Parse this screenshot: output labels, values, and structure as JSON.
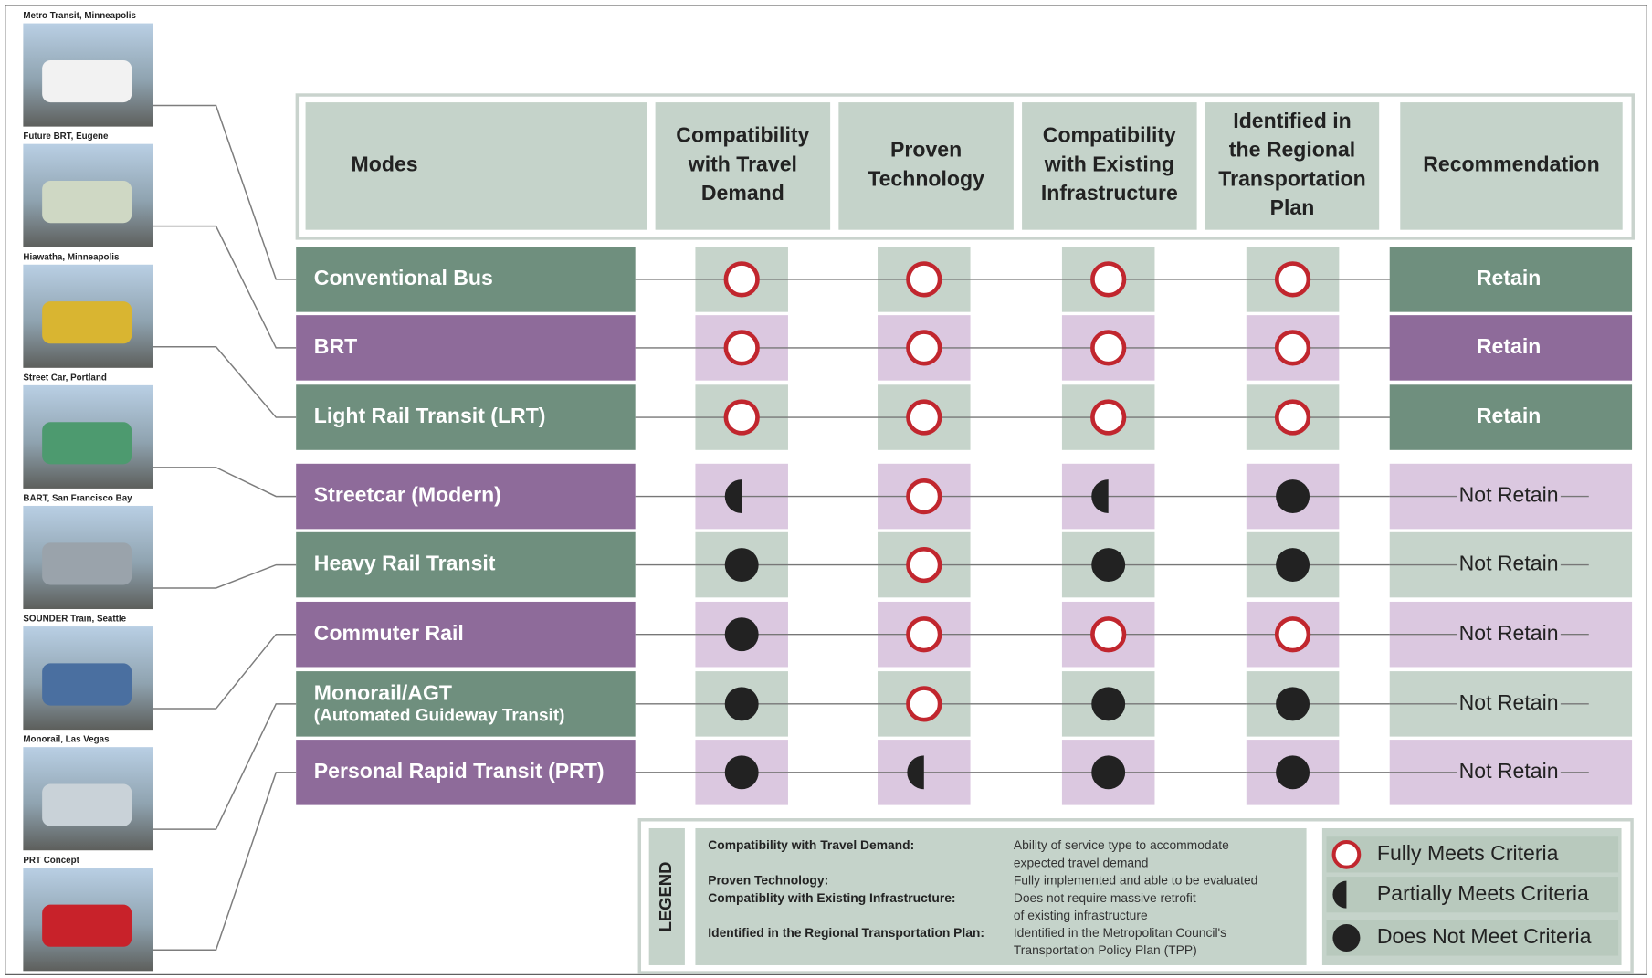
{
  "photos": [
    {
      "caption": "Metro Transit, Minneapolis"
    },
    {
      "caption": "Future BRT, Eugene"
    },
    {
      "caption": "Hiawatha, Minneapolis"
    },
    {
      "caption": "Street Car, Portland"
    },
    {
      "caption": "BART, San Francisco Bay"
    },
    {
      "caption": "SOUNDER Train, Seattle"
    },
    {
      "caption": "Monorail, Las Vegas"
    },
    {
      "caption": "PRT Concept"
    }
  ],
  "header": {
    "columns": [
      [
        "Modes"
      ],
      [
        "Compatibility",
        "with Travel",
        "Demand"
      ],
      [
        "Proven",
        "Technology"
      ],
      [
        "Compatibility",
        "with Existing",
        "Infrastructure"
      ],
      [
        "Identified in",
        "the Regional",
        "Transportation",
        "Plan"
      ],
      [
        "Recommendation"
      ]
    ]
  },
  "rows": [
    {
      "mode": "Conventional Bus",
      "ratings": [
        0,
        0,
        0,
        0
      ],
      "recommendation": "Retain",
      "highlighted": true
    },
    {
      "mode": "BRT",
      "ratings": [
        0,
        0,
        0,
        0
      ],
      "recommendation": "Retain",
      "highlighted": true
    },
    {
      "mode": "Light Rail Transit (LRT)",
      "ratings": [
        0,
        0,
        0,
        0
      ],
      "recommendation": "Retain",
      "highlighted": true
    },
    {
      "mode": "Streetcar (Modern)",
      "ratings": [
        1,
        0,
        1,
        2
      ],
      "recommendation": "Not Retain",
      "highlighted": false
    },
    {
      "mode": "Heavy Rail Transit",
      "ratings": [
        2,
        0,
        2,
        2
      ],
      "recommendation": "Not Retain",
      "highlighted": false
    },
    {
      "mode": "Commuter Rail",
      "ratings": [
        2,
        0,
        0,
        0
      ],
      "recommendation": "Not Retain",
      "highlighted": false
    },
    {
      "mode": "Monorail/AGT",
      "subtitle": "(Automated Guideway Transit)",
      "ratings": [
        2,
        0,
        2,
        2
      ],
      "recommendation": "Not Retain",
      "highlighted": false
    },
    {
      "mode": "Personal Rapid Transit (PRT)",
      "ratings": [
        2,
        1,
        2,
        2
      ],
      "recommendation": "Not Retain",
      "highlighted": false
    }
  ],
  "legend": {
    "title": "LEGEND",
    "definitions": [
      {
        "term": "Compatibility with Travel Demand:",
        "description": [
          "Ability of service type to accommodate",
          "expected travel demand"
        ]
      },
      {
        "term": "Proven Technology:",
        "description": [
          "Fully implemented and able to be evaluated"
        ]
      },
      {
        "term": "Compatiblity with Existing Infrastructure:",
        "description": [
          "Does not require massive retrofit",
          "of existing infrastructure"
        ]
      },
      {
        "term": "Identified in the Regional Transportation Plan:",
        "description": [
          "Identified in the Metropolitan Council's",
          "Transportation Policy Plan (TPP)"
        ]
      }
    ],
    "key": [
      "Fully Meets Criteria",
      "Partially Meets Criteria",
      "Does Not Meet Criteria"
    ]
  }
}
